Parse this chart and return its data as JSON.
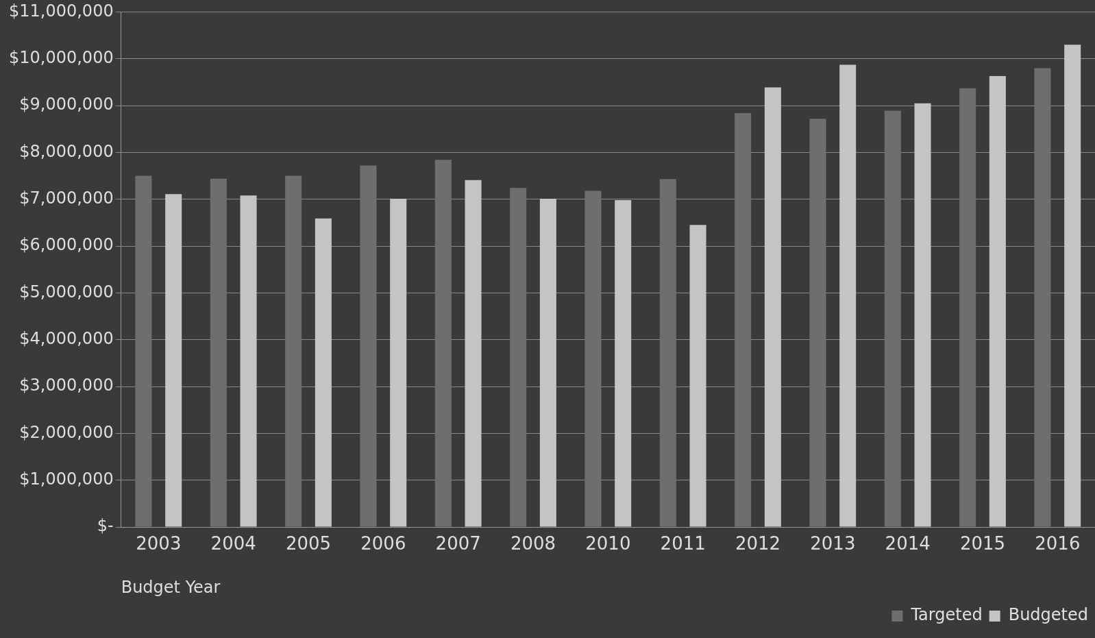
{
  "chart_data": {
    "type": "bar",
    "xlabel": "Budget Year",
    "categories": [
      "2003",
      "2004",
      "2005",
      "2006",
      "2007",
      "2008",
      "2010",
      "2011",
      "2012",
      "2013",
      "2014",
      "2015",
      "2016"
    ],
    "series": [
      {
        "name": "Targeted",
        "color": "#6e6e6e",
        "values": [
          7500000,
          7440000,
          7500000,
          7720000,
          7840000,
          7240000,
          7180000,
          7430000,
          8840000,
          8720000,
          8890000,
          9370000,
          9800000
        ]
      },
      {
        "name": "Budgeted",
        "color": "#c4c4c4",
        "values": [
          7110000,
          7080000,
          6590000,
          7010000,
          7410000,
          7010000,
          6980000,
          6450000,
          9390000,
          9870000,
          9050000,
          9630000,
          10300000
        ]
      }
    ],
    "ylim": [
      0,
      11000000
    ],
    "yticks": [
      {
        "value": 0,
        "label": "$-"
      },
      {
        "value": 1000000,
        "label": "$1,000,000"
      },
      {
        "value": 2000000,
        "label": "$2,000,000"
      },
      {
        "value": 3000000,
        "label": "$3,000,000"
      },
      {
        "value": 4000000,
        "label": "$4,000,000"
      },
      {
        "value": 5000000,
        "label": "$5,000,000"
      },
      {
        "value": 6000000,
        "label": "$6,000,000"
      },
      {
        "value": 7000000,
        "label": "$7,000,000"
      },
      {
        "value": 8000000,
        "label": "$8,000,000"
      },
      {
        "value": 9000000,
        "label": "$9,000,000"
      },
      {
        "value": 10000000,
        "label": "$10,000,000"
      },
      {
        "value": 11000000,
        "label": "$11,000,000"
      }
    ],
    "grid": "y",
    "legend": "bottom right"
  }
}
